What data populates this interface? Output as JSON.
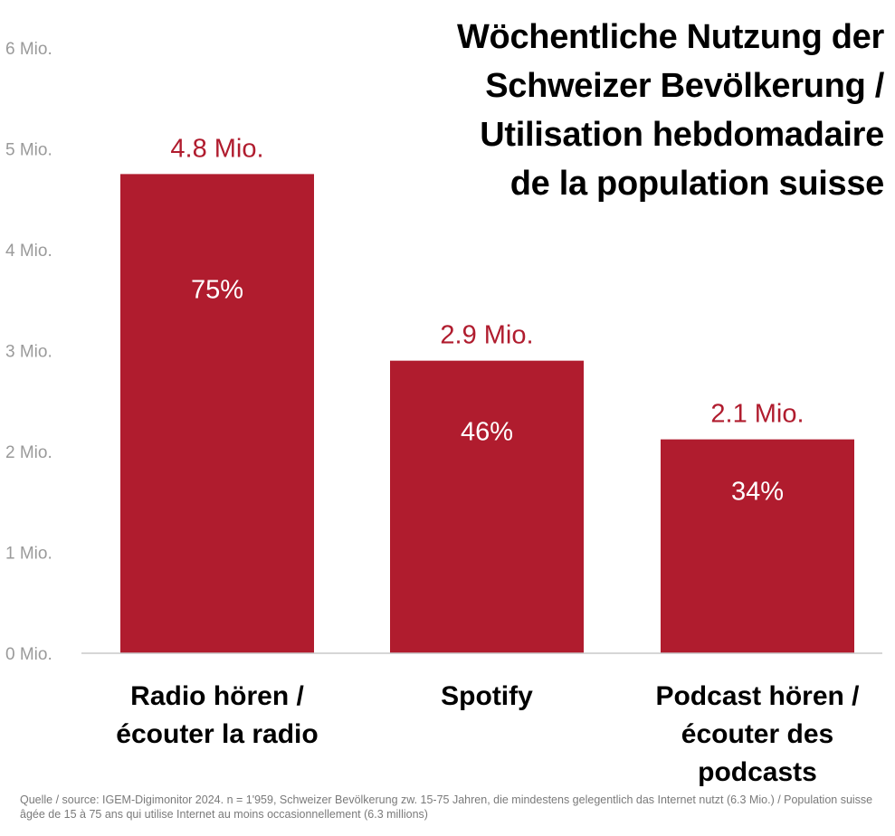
{
  "chart_data": {
    "type": "bar",
    "title": "Wöchentliche Nutzung der Schweizer Bevölkerung / Utilisation hebdomadaire de la population suisse",
    "title_lines": [
      "Wöchentliche Nutzung der",
      "Schweizer Bevölkerung /",
      "Utilisation hebdomadaire",
      "de la population suisse"
    ],
    "categories": [
      [
        "Radio hören /",
        "écouter la radio"
      ],
      [
        "Spotify"
      ],
      [
        "Podcast hören /",
        "écouter des",
        "podcasts"
      ]
    ],
    "values": [
      4.75,
      2.9,
      2.12
    ],
    "value_labels": [
      "4.8 Mio.",
      "2.9 Mio.",
      "2.1 Mio."
    ],
    "percent_labels": [
      "75%",
      "46%",
      "34%"
    ],
    "ylim": [
      0,
      6
    ],
    "yticks": [
      0,
      1,
      2,
      3,
      4,
      5,
      6
    ],
    "ytick_labels": [
      "0 Mio.",
      "1 Mio.",
      "2 Mio.",
      "3 Mio.",
      "4 Mio.",
      "5 Mio.",
      "6 Mio."
    ],
    "xlabel": "",
    "ylabel": "",
    "grid": false,
    "legend": "none",
    "colors": {
      "bar": "#b01c2e",
      "value_label": "#b01c2e",
      "percent_label": "#ffffff",
      "tick_label": "#9a9a9a",
      "axis_line": "#c8c8c8"
    }
  },
  "footnote": "Quelle / source: IGEM-Digimonitor 2024. n = 1'959, Schweizer Bevölkerung zw. 15-75 Jahren, die mindestens gelegentlich das Internet nutzt (6.3 Mio.) / Population suisse âgée de 15 à 75 ans qui utilise Internet au moins occasionnellement (6.3 millions)"
}
